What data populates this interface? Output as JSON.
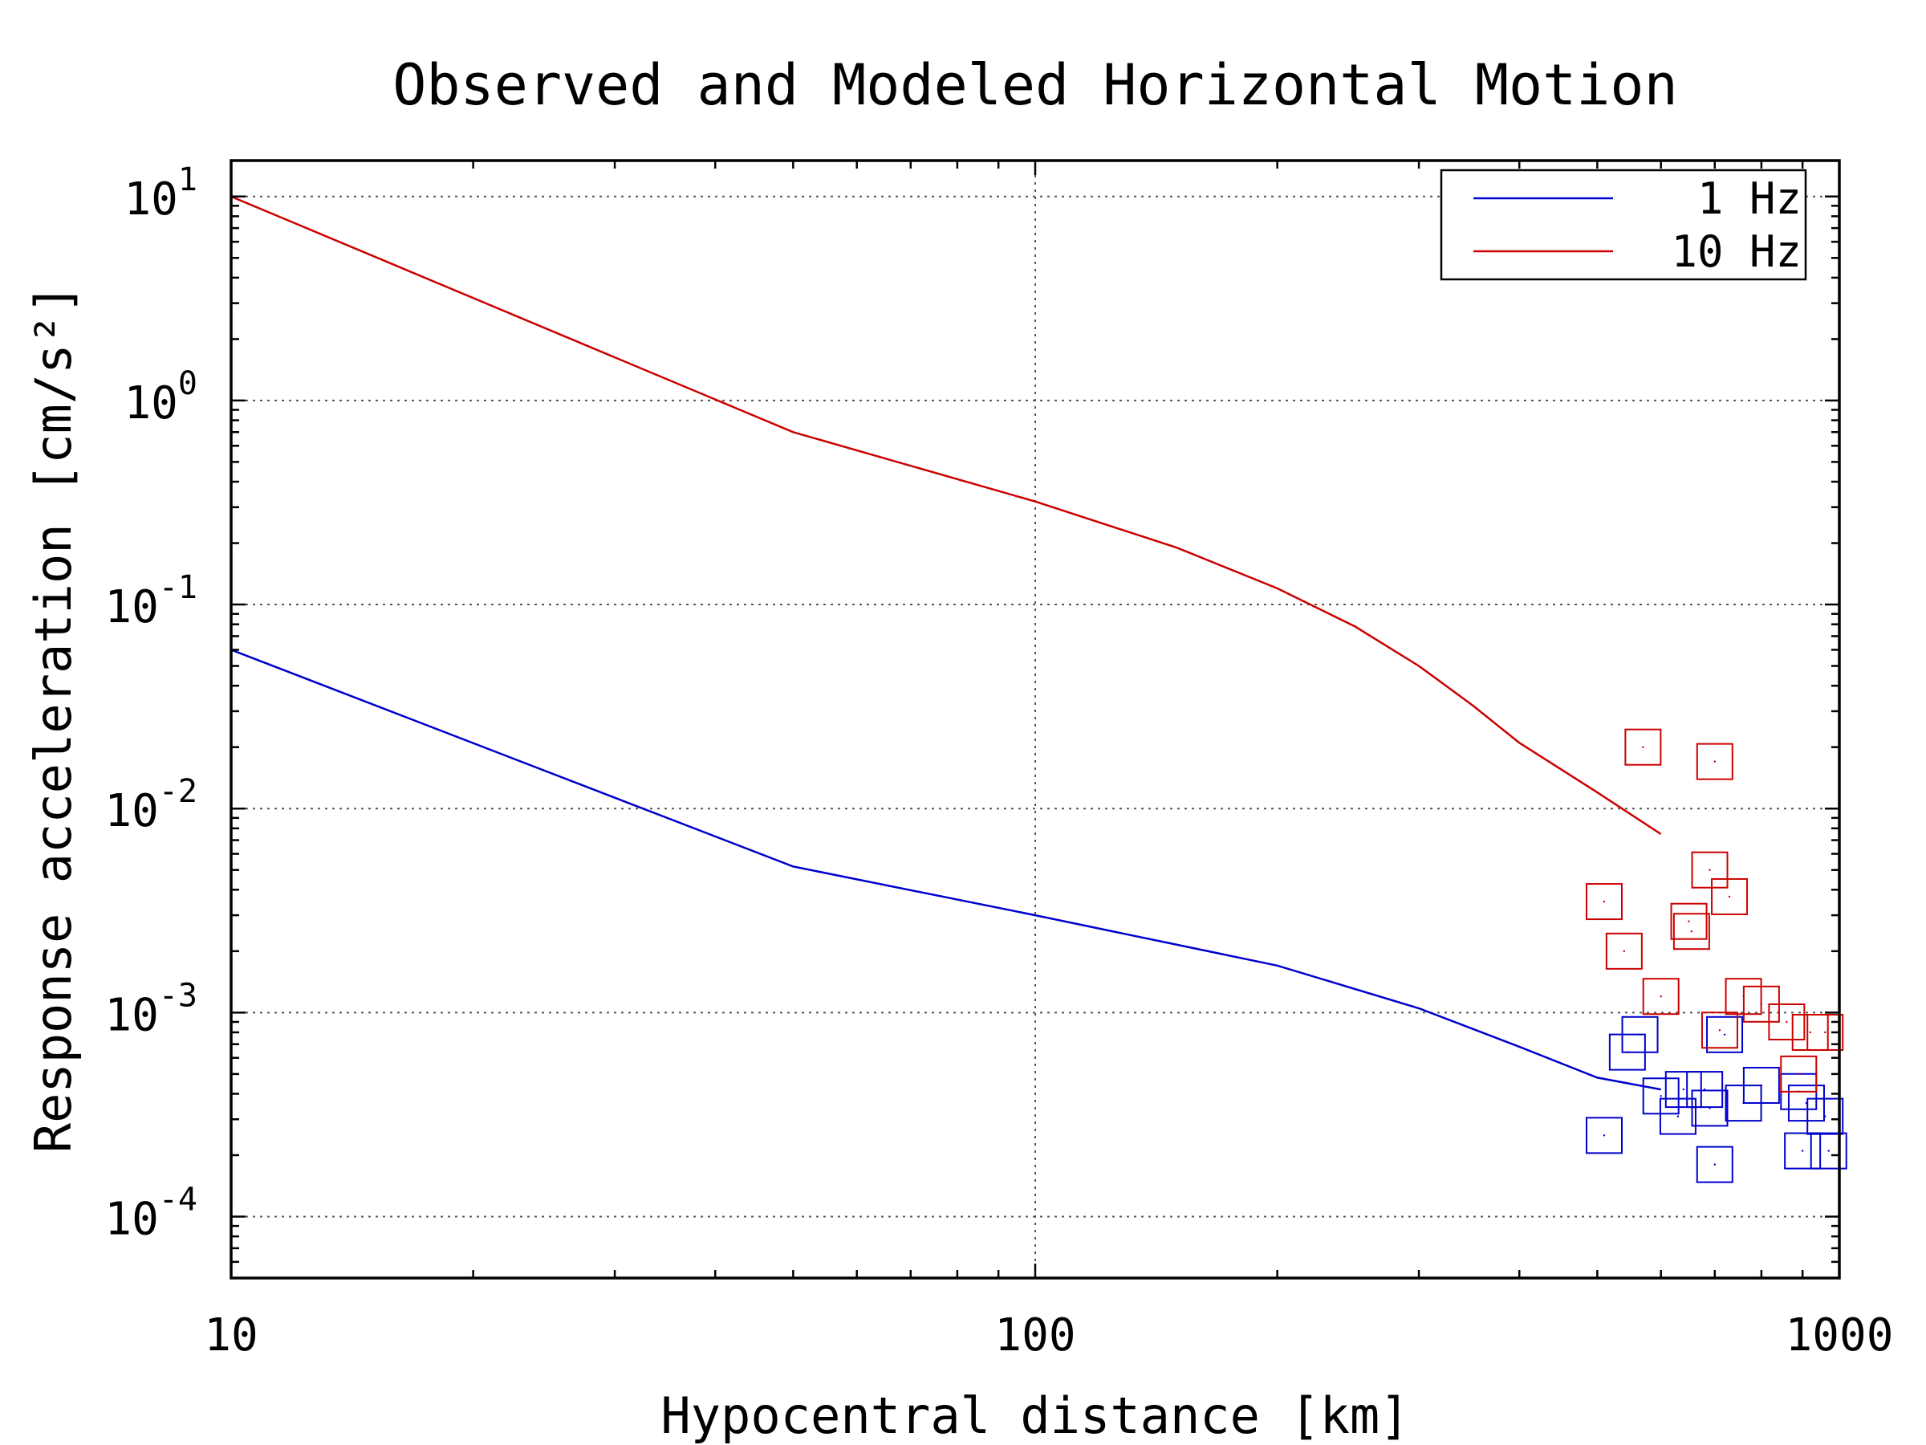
{
  "chart_data": {
    "type": "line",
    "title": "Observed and Modeled Horizontal Motion",
    "xlabel": "Hypocentral distance [km]",
    "ylabel": "Response acceleration [cm/s²]",
    "x_scale": "log",
    "y_scale": "log",
    "xlim": [
      10,
      1000
    ],
    "ylim": [
      5e-05,
      15
    ],
    "x_ticks": [
      10,
      100,
      1000
    ],
    "x_tick_labels": [
      "10",
      "100",
      "1000"
    ],
    "y_ticks": [
      {
        "value": 10,
        "base": "10",
        "exp": "1"
      },
      {
        "value": 1,
        "base": "10",
        "exp": "0"
      },
      {
        "value": 0.1,
        "base": "10",
        "exp": "-1"
      },
      {
        "value": 0.01,
        "base": "10",
        "exp": "-2"
      },
      {
        "value": 0.001,
        "base": "10",
        "exp": "-3"
      },
      {
        "value": 0.0001,
        "base": "10",
        "exp": "-4"
      }
    ],
    "grid": true,
    "legend_position": "top-right",
    "series": [
      {
        "name": "1 Hz",
        "color": "#0000cc",
        "x": [
          10,
          50,
          100,
          200,
          300,
          400,
          500,
          600
        ],
        "y": [
          0.06,
          0.0052,
          0.003,
          0.0017,
          0.00105,
          0.00068,
          0.00048,
          0.00042
        ]
      },
      {
        "name": "10 Hz",
        "color": "#cc0000",
        "x": [
          10,
          50,
          100,
          150,
          200,
          250,
          300,
          350,
          400,
          500,
          600
        ],
        "y": [
          10,
          0.7,
          0.32,
          0.19,
          0.12,
          0.078,
          0.05,
          0.032,
          0.021,
          0.012,
          0.0075
        ]
      }
    ],
    "observations": [
      {
        "series": "1 Hz",
        "color": "#0000cc",
        "points": [
          [
            510,
            0.00025
          ],
          [
            545,
            0.00064
          ],
          [
            565,
            0.00078
          ],
          [
            600,
            0.00039
          ],
          [
            640,
            0.00042
          ],
          [
            630,
            0.00031
          ],
          [
            680,
            0.00042
          ],
          [
            690,
            0.00034
          ],
          [
            700,
            0.00018
          ],
          [
            720,
            0.00078
          ],
          [
            760,
            0.00036
          ],
          [
            800,
            0.00044
          ],
          [
            890,
            0.00041
          ],
          [
            900,
            0.00021
          ],
          [
            910,
            0.00036
          ],
          [
            960,
            0.00031
          ],
          [
            970,
            0.00021
          ]
        ]
      },
      {
        "series": "10 Hz",
        "color": "#cc0000",
        "points": [
          [
            510,
            0.0035
          ],
          [
            540,
            0.002
          ],
          [
            570,
            0.02
          ],
          [
            600,
            0.0012
          ],
          [
            650,
            0.0028
          ],
          [
            655,
            0.0025
          ],
          [
            690,
            0.005
          ],
          [
            700,
            0.017
          ],
          [
            710,
            0.00082
          ],
          [
            730,
            0.0037
          ],
          [
            760,
            0.0012
          ],
          [
            800,
            0.0011
          ],
          [
            860,
            0.0009
          ],
          [
            890,
            0.0005
          ],
          [
            920,
            0.0008
          ],
          [
            960,
            0.0008
          ]
        ]
      }
    ]
  }
}
